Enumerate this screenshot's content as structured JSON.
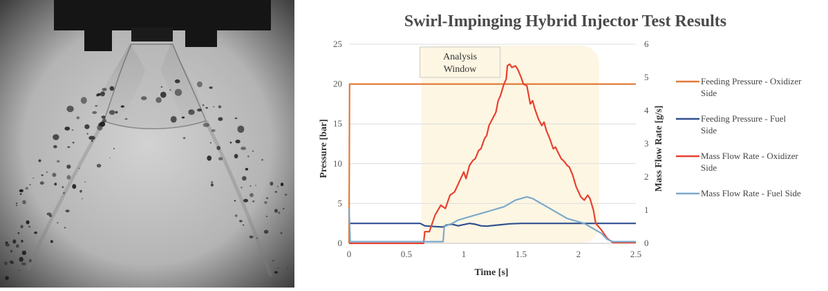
{
  "photo": {
    "subject": "spray-image",
    "colors": {
      "background": "#c4c4c4",
      "vignette": "#4a4a4a",
      "injector": "#151515",
      "droplet": "#1c1c1c"
    }
  },
  "chart_data": {
    "type": "line",
    "title": "Swirl-Impinging Hybrid Injector Test Results",
    "xlabel": "Time [s]",
    "ylabel": "Pressure [bar]",
    "y2label": "Mass Flow Rate [g/s]",
    "xlim": [
      0,
      2.5
    ],
    "ylim": [
      0,
      25
    ],
    "y2lim": [
      0,
      6
    ],
    "xticks": [
      "0",
      "0.5",
      "1",
      "1.5",
      "2",
      "2.5"
    ],
    "yticks": [
      "0",
      "5",
      "10",
      "15",
      "20",
      "25"
    ],
    "y2ticks": [
      "0",
      "1",
      "2",
      "3",
      "4",
      "5",
      "6"
    ],
    "grid": "horizontal",
    "legend_position": "right",
    "annotation": {
      "text_line1": "Analysis",
      "text_line2": "Window",
      "x_range": [
        0.63,
        2.18
      ],
      "fill": "#fdf6e3"
    },
    "series": [
      {
        "name": "Feeding Pressure - Oxidizer Side",
        "axis": "left",
        "color": "#e07b39",
        "points": [
          [
            0,
            0
          ],
          [
            0.005,
            20
          ],
          [
            2.5,
            20
          ]
        ]
      },
      {
        "name": "Feeding Pressure - Fuel Side",
        "axis": "left",
        "color": "#2f4f8f",
        "points": [
          [
            0,
            2.5
          ],
          [
            0.62,
            2.5
          ],
          [
            0.66,
            2.2
          ],
          [
            0.75,
            2.1
          ],
          [
            0.82,
            2.05
          ],
          [
            0.85,
            2.3
          ],
          [
            0.9,
            2.4
          ],
          [
            0.95,
            2.2
          ],
          [
            1.0,
            2.35
          ],
          [
            1.05,
            2.5
          ],
          [
            1.1,
            2.4
          ],
          [
            1.15,
            2.2
          ],
          [
            1.2,
            2.15
          ],
          [
            1.3,
            2.3
          ],
          [
            1.4,
            2.45
          ],
          [
            1.5,
            2.5
          ],
          [
            2.5,
            2.5
          ]
        ]
      },
      {
        "name": "Mass Flow Rate - Oxidizer Side",
        "axis": "right",
        "color": "#e8402e",
        "points": [
          [
            0,
            0
          ],
          [
            0.65,
            0
          ],
          [
            0.66,
            0.35
          ],
          [
            0.7,
            0.35
          ],
          [
            0.75,
            0.85
          ],
          [
            0.8,
            1.15
          ],
          [
            0.84,
            1.05
          ],
          [
            0.88,
            1.45
          ],
          [
            0.92,
            1.55
          ],
          [
            0.96,
            1.85
          ],
          [
            1.0,
            2.15
          ],
          [
            1.02,
            1.95
          ],
          [
            1.05,
            2.35
          ],
          [
            1.08,
            2.5
          ],
          [
            1.1,
            2.55
          ],
          [
            1.13,
            2.8
          ],
          [
            1.15,
            2.85
          ],
          [
            1.18,
            3.15
          ],
          [
            1.2,
            3.25
          ],
          [
            1.22,
            3.55
          ],
          [
            1.25,
            3.75
          ],
          [
            1.28,
            3.95
          ],
          [
            1.3,
            4.3
          ],
          [
            1.32,
            4.45
          ],
          [
            1.35,
            4.8
          ],
          [
            1.37,
            4.95
          ],
          [
            1.38,
            5.35
          ],
          [
            1.4,
            5.4
          ],
          [
            1.42,
            5.3
          ],
          [
            1.45,
            5.35
          ],
          [
            1.47,
            5.25
          ],
          [
            1.5,
            5.0
          ],
          [
            1.52,
            4.8
          ],
          [
            1.55,
            4.75
          ],
          [
            1.58,
            4.2
          ],
          [
            1.6,
            4.3
          ],
          [
            1.62,
            4.05
          ],
          [
            1.65,
            3.75
          ],
          [
            1.68,
            3.55
          ],
          [
            1.7,
            3.65
          ],
          [
            1.72,
            3.4
          ],
          [
            1.75,
            3.15
          ],
          [
            1.78,
            2.85
          ],
          [
            1.8,
            2.9
          ],
          [
            1.82,
            2.75
          ],
          [
            1.85,
            2.55
          ],
          [
            1.88,
            2.45
          ],
          [
            1.9,
            2.35
          ],
          [
            1.92,
            2.3
          ],
          [
            1.95,
            2.05
          ],
          [
            1.98,
            1.7
          ],
          [
            2.0,
            1.55
          ],
          [
            2.02,
            1.4
          ],
          [
            2.05,
            1.3
          ],
          [
            2.08,
            1.45
          ],
          [
            2.1,
            1.35
          ],
          [
            2.13,
            1.0
          ],
          [
            2.15,
            0.6
          ],
          [
            2.2,
            0.4
          ],
          [
            2.25,
            0.15
          ],
          [
            2.3,
            0.02
          ],
          [
            2.5,
            0.02
          ]
        ]
      },
      {
        "name": "Mass Flow Rate - Fuel Side",
        "axis": "right",
        "color": "#7aa9cc",
        "points": [
          [
            0,
            1.05
          ],
          [
            0.01,
            0.05
          ],
          [
            0.82,
            0.05
          ],
          [
            0.83,
            0.5
          ],
          [
            0.86,
            0.55
          ],
          [
            0.9,
            0.6
          ],
          [
            0.95,
            0.7
          ],
          [
            1.0,
            0.75
          ],
          [
            1.05,
            0.8
          ],
          [
            1.1,
            0.85
          ],
          [
            1.15,
            0.9
          ],
          [
            1.2,
            0.95
          ],
          [
            1.25,
            1.0
          ],
          [
            1.3,
            1.05
          ],
          [
            1.35,
            1.1
          ],
          [
            1.4,
            1.2
          ],
          [
            1.45,
            1.3
          ],
          [
            1.5,
            1.35
          ],
          [
            1.55,
            1.4
          ],
          [
            1.6,
            1.35
          ],
          [
            1.65,
            1.25
          ],
          [
            1.7,
            1.15
          ],
          [
            1.75,
            1.05
          ],
          [
            1.8,
            0.95
          ],
          [
            1.85,
            0.85
          ],
          [
            1.9,
            0.75
          ],
          [
            1.95,
            0.7
          ],
          [
            2.0,
            0.65
          ],
          [
            2.05,
            0.6
          ],
          [
            2.1,
            0.5
          ],
          [
            2.15,
            0.4
          ],
          [
            2.2,
            0.3
          ],
          [
            2.25,
            0.12
          ],
          [
            2.3,
            0.05
          ],
          [
            2.5,
            0.05
          ]
        ]
      }
    ]
  }
}
